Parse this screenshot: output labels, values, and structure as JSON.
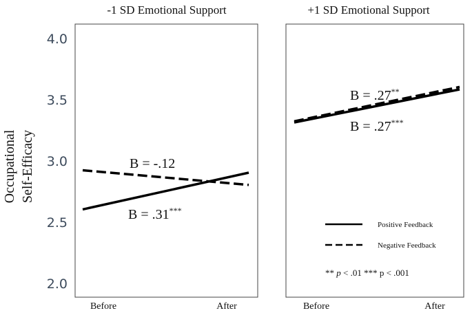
{
  "chart_data": {
    "type": "line",
    "ylabel_line1": "Occupational",
    "ylabel_line2": "Self-Efficacy",
    "ylim": [
      2.0,
      4.0
    ],
    "yticks": [
      "4.0",
      "3.5",
      "3.0",
      "2.5",
      "2.0"
    ],
    "categories": [
      "Before",
      "After"
    ],
    "grid": false,
    "legend": {
      "placement": "bottom-right of right panel",
      "items": [
        {
          "label": "Positive Feedback",
          "style": "solid"
        },
        {
          "label": "Negative Feedback",
          "style": "dashed"
        }
      ]
    },
    "note": {
      "part1": "** ",
      "p1": "p",
      "part2": " < .01 *** p < .001"
    },
    "panels": [
      {
        "title": "-1 SD Emotional Support",
        "series": [
          {
            "name": "Positive Feedback",
            "style": "solid",
            "values": [
              2.61,
              2.91
            ],
            "annotation": {
              "text": "B = .31",
              "sup": "***"
            }
          },
          {
            "name": "Negative Feedback",
            "style": "dashed",
            "values": [
              2.93,
              2.81
            ],
            "annotation": {
              "text": "B = -.12",
              "sup": ""
            }
          }
        ]
      },
      {
        "title": "+1 SD Emotional Support",
        "series": [
          {
            "name": "Positive Feedback",
            "style": "solid",
            "values": [
              3.32,
              3.59
            ],
            "annotation": {
              "text": "B = .27",
              "sup": "***"
            }
          },
          {
            "name": "Negative Feedback",
            "style": "dashed",
            "values": [
              3.33,
              3.61
            ],
            "annotation": {
              "text": "B = .27",
              "sup": "**"
            }
          }
        ]
      }
    ]
  }
}
